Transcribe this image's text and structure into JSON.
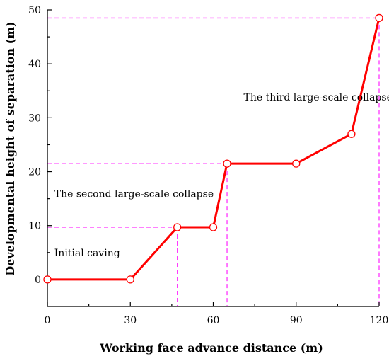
{
  "chart_data": {
    "type": "line",
    "title": "",
    "xlabel": "Working face advance distance (m)",
    "ylabel": "Developmental height of separation (m)",
    "xlim": [
      0,
      120
    ],
    "ylim": [
      -5,
      50
    ],
    "xticks": [
      0,
      30,
      60,
      90,
      120
    ],
    "yticks": [
      0,
      10,
      20,
      30,
      40,
      50
    ],
    "grid": false,
    "series": [
      {
        "color": "#ff0000",
        "x": [
          0,
          30,
          47,
          60,
          65,
          90,
          110,
          120
        ],
        "y": [
          0,
          0,
          9.7,
          9.7,
          21.5,
          21.5,
          27,
          48.5
        ]
      }
    ],
    "guide_color": "#ff33ff",
    "guides": [
      {
        "x": 47,
        "y": 9.7
      },
      {
        "x": 65,
        "y": 21.5
      },
      {
        "x": 120,
        "y": 48.5
      }
    ],
    "annotations": [
      {
        "text": "Initial caving",
        "x": 2.5,
        "y": 4.3
      },
      {
        "text": "The second large-scale collapse",
        "x": 2.5,
        "y": 15.3
      },
      {
        "text": "The third large-scale collapse",
        "x": 71,
        "y": 33.2
      }
    ]
  }
}
